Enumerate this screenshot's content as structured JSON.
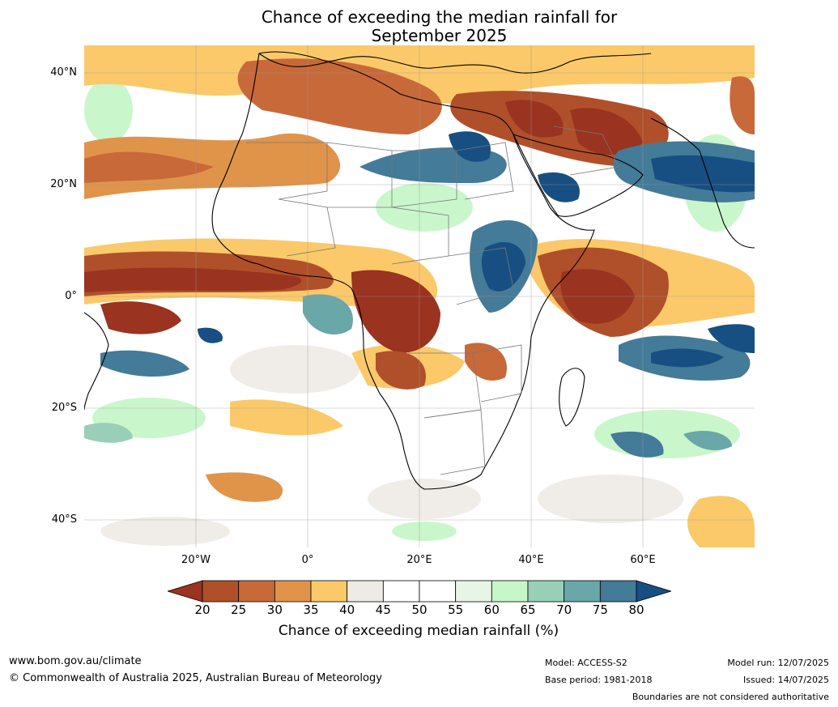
{
  "title_line1": "Chance of exceeding the median rainfall for",
  "title_line2": "September 2025",
  "lat_labels": [
    "40°N",
    "20°N",
    "0°",
    "20°S",
    "40°S"
  ],
  "lon_labels": [
    "20°W",
    "0°",
    "20°E",
    "40°E",
    "60°E"
  ],
  "colorbar": {
    "ticks": [
      "20",
      "25",
      "30",
      "35",
      "40",
      "45",
      "50",
      "55",
      "60",
      "65",
      "70",
      "75",
      "80"
    ],
    "colors": [
      "#9a3320",
      "#b0502a",
      "#c8693a",
      "#e0944a",
      "#fbc96a",
      "#eeebe6",
      "#ffffff",
      "#ffffff",
      "#e7f5e6",
      "#c7f6c8",
      "#99cfb8",
      "#69a7a8",
      "#437b98",
      "#174f82"
    ],
    "label": "Chance of exceeding median rainfall (%)"
  },
  "footer": {
    "website": "www.bom.gov.au/climate",
    "copyright": "© Commonwealth of Australia 2025, Australian Bureau of Meteorology",
    "model": "Model: ACCESS-S2",
    "base_period": "Base period: 1981-2018",
    "model_run": "Model run: 12/07/2025",
    "issued": "Issued: 14/07/2025",
    "disclaimer": "Boundaries are not considered authoritative"
  }
}
